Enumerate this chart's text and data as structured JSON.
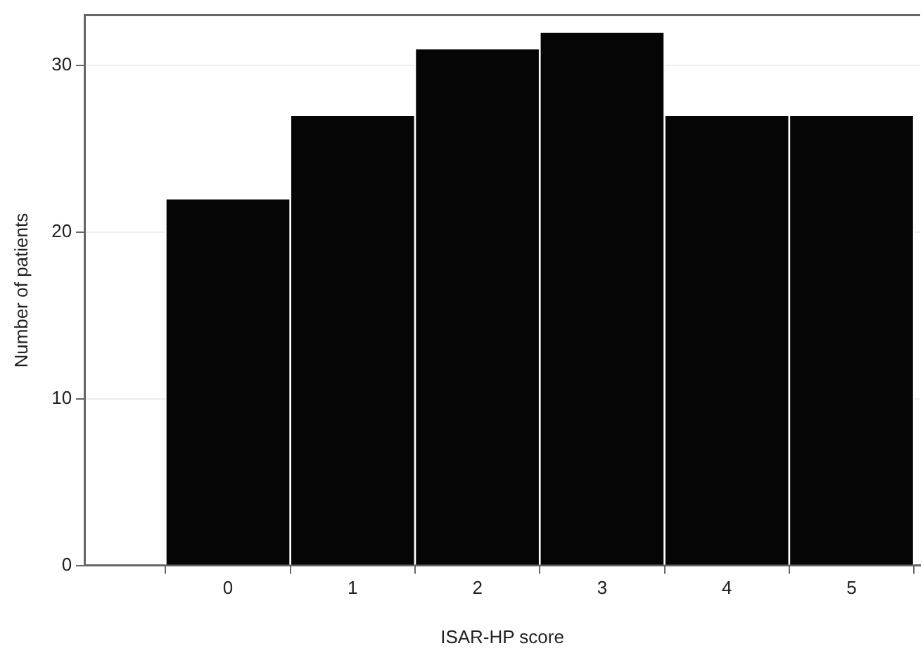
{
  "chart_data": {
    "type": "histogram",
    "xlabel": "ISAR-HP score",
    "ylabel": "Number of patients",
    "bins": [
      -0.5,
      0.5,
      1.5,
      2.5,
      3.5,
      4.5,
      5.5
    ],
    "values": [
      22,
      27,
      31,
      32,
      27,
      27
    ],
    "color": "#050505",
    "xlim": [
      -1.15,
      5.55
    ],
    "xticks": [
      0,
      1,
      2,
      3,
      4,
      5
    ],
    "ylim": [
      0,
      33
    ],
    "yticks": [
      0,
      10,
      20,
      30
    ],
    "grid": "y"
  }
}
